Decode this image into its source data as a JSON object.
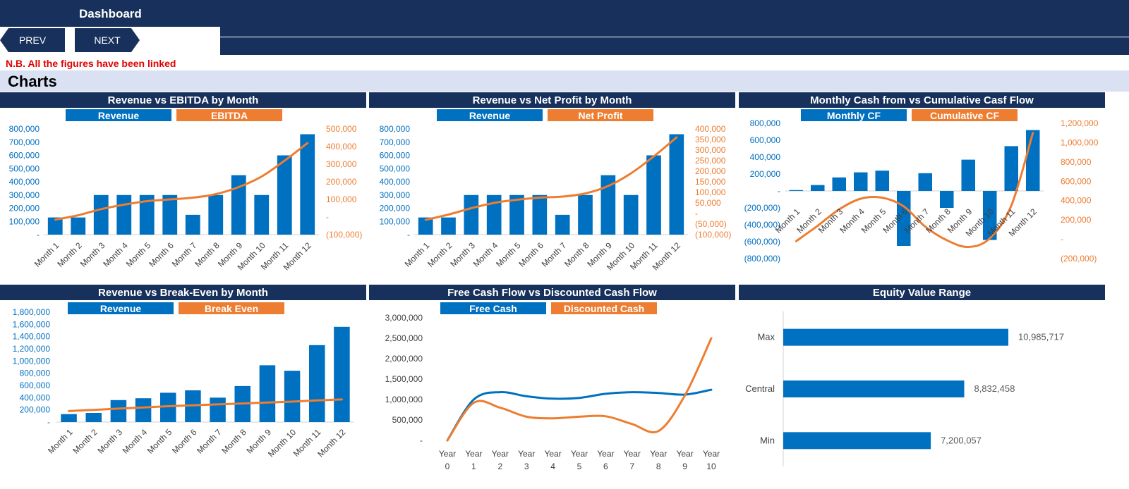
{
  "header": {
    "title": "Dashboard",
    "prev_label": "PREV",
    "next_label": "NEXT",
    "note": "N.B. All the figures have been linked",
    "section_title": "Charts"
  },
  "colors": {
    "navy": "#17315c",
    "blue": "#0070c0",
    "orange": "#ed7d31",
    "note_red": "#e00000",
    "section_bg": "#d9e1f2"
  },
  "chart_data": [
    {
      "type": "bar+line",
      "title": "Revenue vs EBITDA by Month",
      "categories": [
        "Month 1",
        "Month 2",
        "Month 3",
        "Month 4",
        "Month 5",
        "Month 6",
        "Month 7",
        "Month 8",
        "Month 9",
        "Month 10",
        "Month 11",
        "Month 12"
      ],
      "series": [
        {
          "name": "Revenue",
          "kind": "bar",
          "axis": "left",
          "color": "#0070c0",
          "values": [
            130000,
            130000,
            300000,
            300000,
            300000,
            300000,
            150000,
            300000,
            450000,
            300000,
            600000,
            760000
          ]
        },
        {
          "name": "EBITDA",
          "kind": "line",
          "axis": "right",
          "color": "#ed7d31",
          "values": [
            -15000,
            10000,
            45000,
            70000,
            90000,
            100000,
            110000,
            130000,
            170000,
            230000,
            320000,
            420000
          ]
        }
      ],
      "left_axis": {
        "min": 0,
        "max": 800000,
        "step": 100000,
        "ticks": [
          "-",
          "100,000",
          "200,000",
          "300,000",
          "400,000",
          "500,000",
          "600,000",
          "700,000",
          "800,000"
        ]
      },
      "right_axis": {
        "min": -100000,
        "max": 500000,
        "step": 100000,
        "ticks": [
          "(100,000)",
          "-",
          "100,000",
          "200,000",
          "300,000",
          "400,000",
          "500,000"
        ]
      }
    },
    {
      "type": "bar+line",
      "title": "Revenue vs Net Profit by Month",
      "categories": [
        "Month 1",
        "Month 2",
        "Month 3",
        "Month 4",
        "Month 5",
        "Month 6",
        "Month 7",
        "Month 8",
        "Month 9",
        "Month 10",
        "Month 11",
        "Month 12"
      ],
      "series": [
        {
          "name": "Revenue",
          "kind": "bar",
          "axis": "left",
          "color": "#0070c0",
          "values": [
            130000,
            130000,
            300000,
            300000,
            300000,
            300000,
            150000,
            300000,
            450000,
            300000,
            600000,
            760000
          ]
        },
        {
          "name": "Net Profit",
          "kind": "line",
          "axis": "right",
          "color": "#ed7d31",
          "values": [
            -30000,
            -5000,
            25000,
            50000,
            65000,
            75000,
            80000,
            95000,
            130000,
            190000,
            270000,
            360000
          ]
        }
      ],
      "left_axis": {
        "min": 0,
        "max": 800000,
        "step": 100000,
        "ticks": [
          "-",
          "100,000",
          "200,000",
          "300,000",
          "400,000",
          "500,000",
          "600,000",
          "700,000",
          "800,000"
        ]
      },
      "right_axis": {
        "min": -100000,
        "max": 400000,
        "step": 50000,
        "ticks": [
          "(100,000)",
          "(50,000)",
          "-",
          "50,000",
          "100,000",
          "150,000",
          "200,000",
          "250,000",
          "300,000",
          "350,000",
          "400,000"
        ]
      }
    },
    {
      "type": "bar+line",
      "title": "Monthly Cash from vs Cumulative Casf Flow",
      "categories": [
        "Month 1",
        "Month 2",
        "Month 3",
        "Month 4",
        "Month 5",
        "Month 6",
        "Month 7",
        "Month 8",
        "Month 9",
        "Month 10",
        "Month 11",
        "Month 12"
      ],
      "series": [
        {
          "name": "Monthly CF",
          "kind": "bar",
          "axis": "left",
          "color": "#0070c0",
          "values": [
            10000,
            70000,
            160000,
            220000,
            240000,
            -650000,
            210000,
            -200000,
            370000,
            -580000,
            530000,
            720000
          ]
        },
        {
          "name": "Cumulative CF",
          "kind": "line",
          "axis": "right",
          "color": "#ed7d31",
          "values": [
            -20000,
            140000,
            310000,
            420000,
            430000,
            340000,
            130000,
            -10000,
            -80000,
            10000,
            350000,
            1100000
          ]
        }
      ],
      "left_axis": {
        "min": -800000,
        "max": 800000,
        "step": 200000,
        "ticks": [
          "(800,000)",
          "(600,000)",
          "(400,000)",
          "(200,000)",
          "-",
          "200,000",
          "400,000",
          "600,000",
          "800,000"
        ]
      },
      "right_axis": {
        "min": -200000,
        "max": 1200000,
        "step": 200000,
        "ticks": [
          "(200,000)",
          "-",
          "200,000",
          "400,000",
          "600,000",
          "800,000",
          "1,000,000",
          "1,200,000"
        ]
      }
    },
    {
      "type": "bar+line",
      "title": "Revenue vs Break-Even by Month",
      "categories": [
        "Month 1",
        "Month 2",
        "Month 3",
        "Month 4",
        "Month 5",
        "Month 6",
        "Month 7",
        "Month 8",
        "Month 9",
        "Month 10",
        "Month 11",
        "Month 12"
      ],
      "series": [
        {
          "name": "Revenue",
          "kind": "bar",
          "axis": "left",
          "color": "#0070c0",
          "values": [
            130000,
            150000,
            360000,
            390000,
            480000,
            520000,
            400000,
            590000,
            930000,
            840000,
            1260000,
            1560000
          ]
        },
        {
          "name": "Break Even",
          "kind": "line",
          "axis": "left",
          "color": "#ed7d31",
          "values": [
            180000,
            200000,
            220000,
            240000,
            260000,
            275000,
            290000,
            305000,
            320000,
            335000,
            355000,
            370000
          ]
        }
      ],
      "left_axis": {
        "min": 0,
        "max": 1800000,
        "step": 200000,
        "ticks": [
          "-",
          "200,000",
          "400,000",
          "600,000",
          "800,000",
          "1,000,000",
          "1,200,000",
          "1,400,000",
          "1,600,000",
          "1,800,000"
        ]
      }
    },
    {
      "type": "line",
      "title": "Free Cash Flow vs Discounted Cash Flow",
      "categories": [
        [
          "Year",
          "0"
        ],
        [
          "Year",
          "1"
        ],
        [
          "Year",
          "2"
        ],
        [
          "Year",
          "3"
        ],
        [
          "Year",
          "4"
        ],
        [
          "Year",
          "5"
        ],
        [
          "Year",
          "6"
        ],
        [
          "Year",
          "7"
        ],
        [
          "Year",
          "8"
        ],
        [
          "Year",
          "9"
        ],
        [
          "Year",
          "10"
        ]
      ],
      "series": [
        {
          "name": "Free Cash",
          "kind": "line",
          "color": "#0070c0",
          "values": [
            0,
            1000000,
            1180000,
            1080000,
            1020000,
            1040000,
            1140000,
            1180000,
            1160000,
            1120000,
            1240000
          ]
        },
        {
          "name": "Discounted Cash",
          "kind": "line",
          "color": "#ed7d31",
          "values": [
            0,
            920000,
            800000,
            580000,
            540000,
            580000,
            590000,
            400000,
            230000,
            1100000,
            2500000
          ]
        }
      ],
      "left_axis": {
        "min": 0,
        "max": 3000000,
        "step": 500000,
        "ticks": [
          "-",
          "500,000",
          "1,000,000",
          "1,500,000",
          "2,000,000",
          "2,500,000",
          "3,000,000"
        ]
      }
    },
    {
      "type": "hbar",
      "title": "Equity Value Range",
      "categories": [
        "Max",
        "Central",
        "Min"
      ],
      "values": [
        10985717,
        8832458,
        7200057
      ],
      "value_labels": [
        "10,985,717",
        "8,832,458",
        "7,200,057"
      ],
      "color": "#0070c0"
    }
  ]
}
